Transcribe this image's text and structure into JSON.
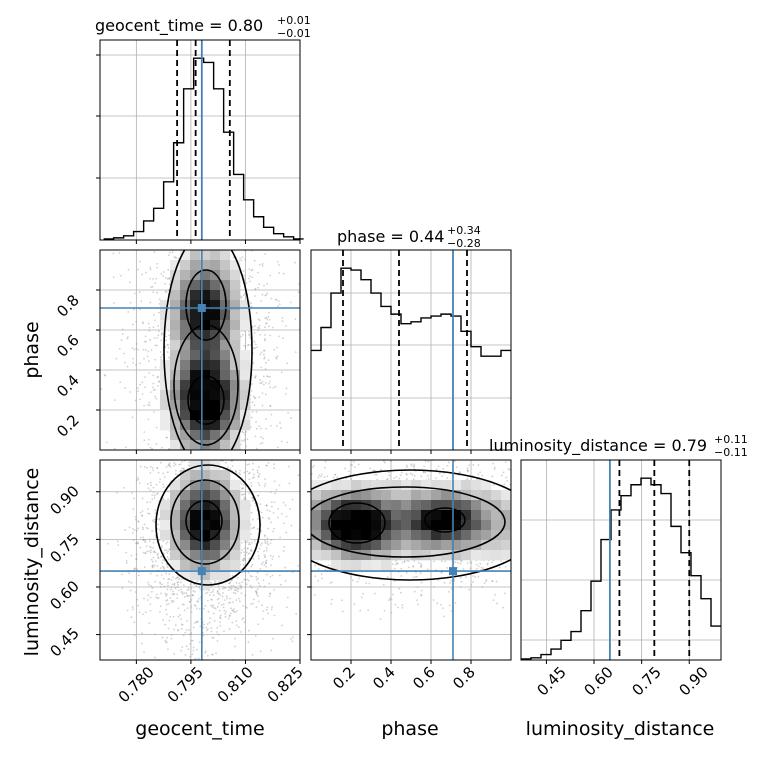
{
  "chart_data": [
    {
      "type": "histogram",
      "panel": "geocent_time",
      "title": {
        "text": "geocent_time = 0.80",
        "sup": "+0.01",
        "sub": "−0.01"
      },
      "xlim": [
        0.77,
        0.825
      ],
      "xticks": [
        "0.780",
        "0.795",
        "0.810",
        "0.825"
      ],
      "x_binning": {
        "start": 0.771,
        "width": 0.00275,
        "count": 20
      },
      "counts": [
        1,
        2,
        4,
        8,
        18,
        30,
        55,
        92,
        143,
        172,
        168,
        143,
        102,
        62,
        38,
        22,
        12,
        6,
        3,
        1
      ],
      "quantile_lines": [
        0.7912,
        0.7963,
        0.8057
      ],
      "truth": 0.798
    },
    {
      "type": "contour",
      "panel": "phase vs geocent_time",
      "ylabel": "phase",
      "xlim": [
        0.77,
        0.825
      ],
      "ylim": [
        0.0,
        1.0
      ],
      "yticks": [
        "0.2",
        "0.4",
        "0.6",
        "0.8"
      ],
      "truth": {
        "x": 0.798,
        "y": 0.71
      }
    },
    {
      "type": "histogram",
      "panel": "phase",
      "title": {
        "text": "phase = 0.44",
        "sup": "+0.34",
        "sub": "−0.28"
      },
      "xlim": [
        0.0,
        1.0
      ],
      "x_binning": {
        "start": 0.0,
        "width": 0.05,
        "count": 20
      },
      "counts": [
        52,
        64,
        82,
        95,
        94,
        89,
        82,
        75,
        71,
        66,
        67,
        69,
        70,
        71,
        70,
        62,
        54,
        49,
        49,
        52
      ],
      "quantile_lines": [
        0.16,
        0.44,
        0.78
      ],
      "truth": 0.71
    },
    {
      "type": "contour",
      "panel": "luminosity_distance vs geocent_time",
      "xlabel": "geocent_time",
      "ylabel": "luminosity_distance",
      "xlim": [
        0.77,
        0.825
      ],
      "ylim": [
        0.37,
        1.0
      ],
      "xticks": [
        "0.780",
        "0.795",
        "0.810",
        "0.825"
      ],
      "yticks": [
        "0.45",
        "0.60",
        "0.75",
        "0.90"
      ],
      "truth": {
        "x": 0.798,
        "y": 0.65
      }
    },
    {
      "type": "contour",
      "panel": "luminosity_distance vs phase",
      "xlabel": "phase",
      "xlim": [
        0.0,
        1.0
      ],
      "ylim": [
        0.37,
        1.0
      ],
      "xticks": [
        "0.2",
        "0.4",
        "0.6",
        "0.8"
      ],
      "truth": {
        "x": 0.71,
        "y": 0.65
      }
    },
    {
      "type": "histogram",
      "panel": "luminosity_distance",
      "title": {
        "text": "luminosity_distance = 0.79",
        "sup": "+0.11",
        "sub": "−0.11"
      },
      "xlabel": "luminosity_distance",
      "xlim": [
        0.37,
        1.0
      ],
      "xticks": [
        "0.45",
        "0.60",
        "0.75",
        "0.90"
      ],
      "x_binning": {
        "start": 0.37,
        "width": 0.0315,
        "count": 20
      },
      "counts": [
        1,
        2,
        5,
        10,
        18,
        26,
        45,
        72,
        110,
        137,
        150,
        160,
        166,
        160,
        152,
        122,
        98,
        77,
        56,
        31
      ],
      "quantile_lines": [
        0.68,
        0.79,
        0.9
      ],
      "truth": 0.65
    }
  ],
  "colors": {
    "truth": "#4682b4",
    "hist": "#000000",
    "grid": "#b0b0b0",
    "density": "#000000"
  }
}
